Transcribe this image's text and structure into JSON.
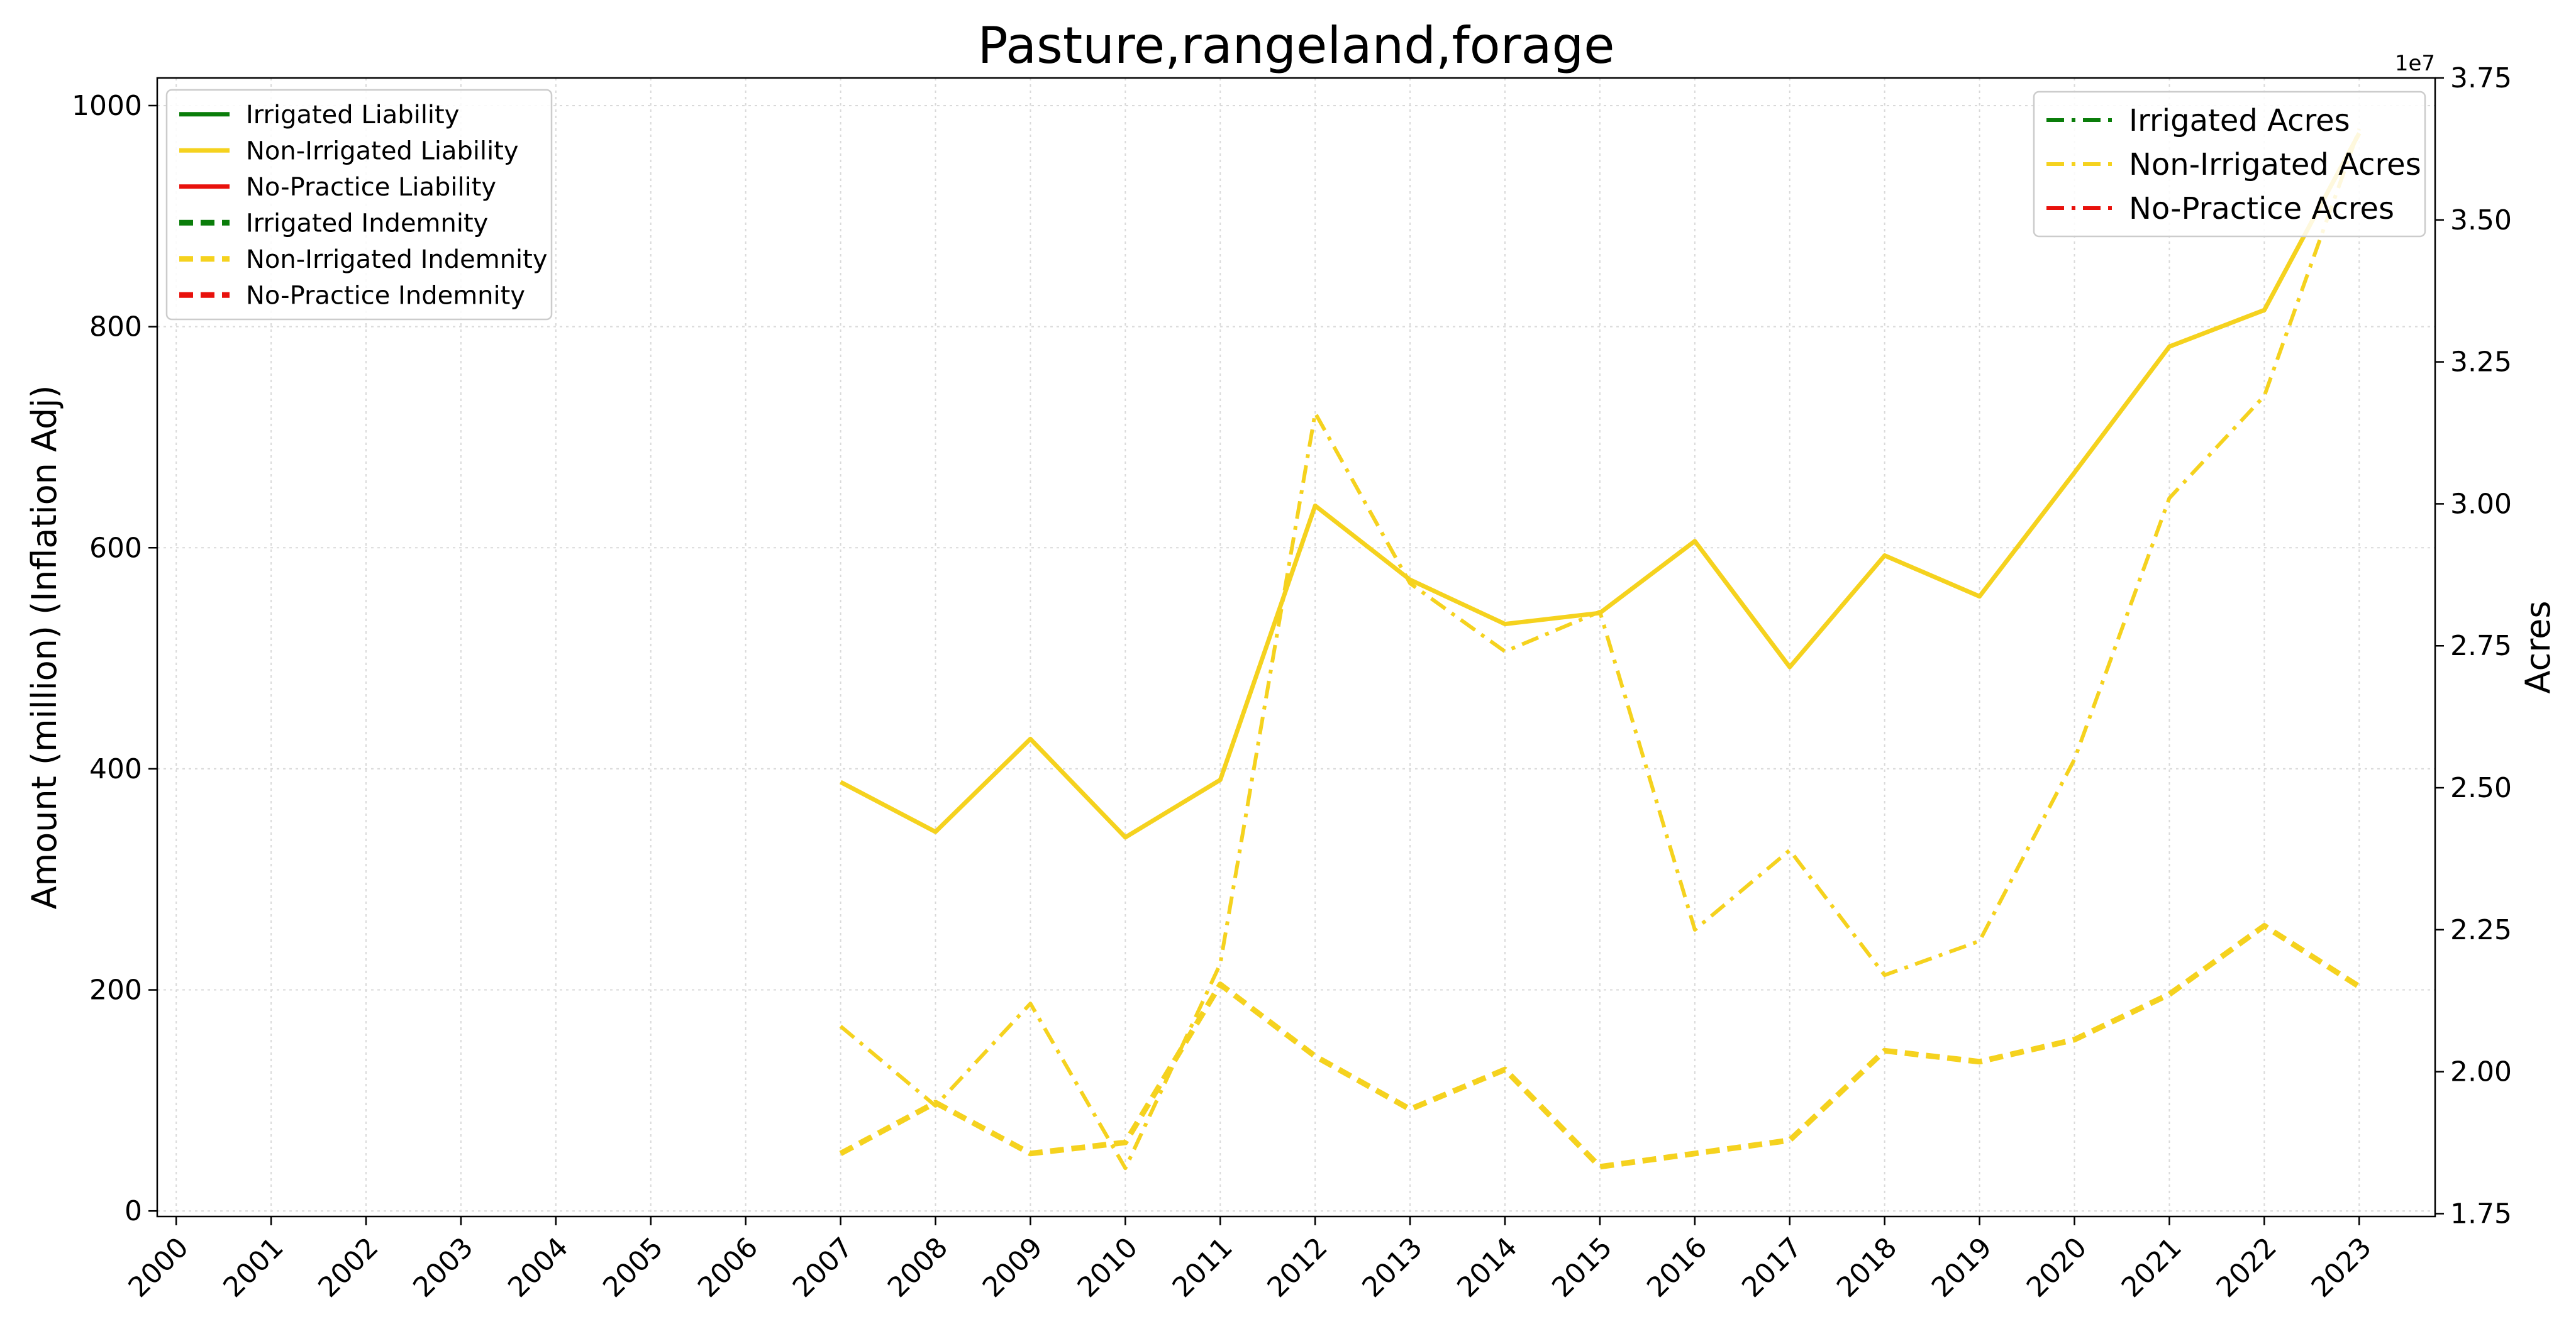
{
  "chart_data": {
    "type": "line",
    "title": "Pasture,rangeland,forage",
    "ylabel_left": "Amount (million) (Inflation Adj)",
    "ylabel_right": "Acres",
    "right_axis_offset_label": "1e7",
    "x": [
      2000,
      2001,
      2002,
      2003,
      2004,
      2005,
      2006,
      2007,
      2008,
      2009,
      2010,
      2011,
      2012,
      2013,
      2014,
      2015,
      2016,
      2017,
      2018,
      2019,
      2020,
      2021,
      2022,
      2023
    ],
    "x_tick_labels": [
      "2000",
      "2001",
      "2002",
      "2003",
      "2004",
      "2005",
      "2006",
      "2007",
      "2008",
      "2009",
      "2010",
      "2011",
      "2012",
      "2013",
      "2014",
      "2015",
      "2016",
      "2017",
      "2018",
      "2019",
      "2020",
      "2021",
      "2022",
      "2023"
    ],
    "xlim": [
      1999.8,
      2023.8
    ],
    "ylim_left": [
      -5,
      1025
    ],
    "ylim_right": [
      1.745,
      3.75
    ],
    "left_ticks": [
      "0",
      "200",
      "400",
      "600",
      "800",
      "1000"
    ],
    "left_tick_values": [
      0,
      200,
      400,
      600,
      800,
      1000
    ],
    "right_ticks": [
      "1.75",
      "2.00",
      "2.25",
      "2.50",
      "2.75",
      "3.00",
      "3.25",
      "3.50",
      "3.75"
    ],
    "right_tick_values": [
      1.75,
      2.0,
      2.25,
      2.5,
      2.75,
      3.0,
      3.25,
      3.5,
      3.75
    ],
    "grid": true,
    "legend_left_placement": "upper-left",
    "legend_right_placement": "upper-right",
    "series": [
      {
        "name": "Irrigated Liability",
        "axis": "left",
        "style": "solid",
        "color": "#0a7d0a",
        "x": [],
        "values": []
      },
      {
        "name": "Non-Irrigated Liability",
        "axis": "left",
        "style": "solid",
        "color": "#f5d21e",
        "x": [
          2007,
          2008,
          2009,
          2010,
          2011,
          2012,
          2013,
          2014,
          2015,
          2016,
          2017,
          2018,
          2019,
          2020,
          2021,
          2022,
          2023
        ],
        "values": [
          388,
          343,
          427,
          338,
          390,
          638,
          571,
          531,
          541,
          606,
          492,
          593,
          556,
          668,
          782,
          815,
          975
        ]
      },
      {
        "name": "No-Practice Liability",
        "axis": "left",
        "style": "solid",
        "color": "#e8110c",
        "x": [],
        "values": []
      },
      {
        "name": "Irrigated Indemnity",
        "axis": "left",
        "style": "dashed",
        "color": "#0a7d0a",
        "x": [],
        "values": []
      },
      {
        "name": "Non-Irrigated Indemnity",
        "axis": "left",
        "style": "dashed",
        "color": "#f5d21e",
        "x": [
          2007,
          2008,
          2009,
          2010,
          2011,
          2012,
          2013,
          2014,
          2015,
          2016,
          2017,
          2018,
          2019,
          2020,
          2021,
          2022,
          2023
        ],
        "values": [
          52,
          98,
          52,
          62,
          205,
          140,
          92,
          128,
          40,
          52,
          64,
          145,
          135,
          155,
          196,
          258,
          203
        ]
      },
      {
        "name": "No-Practice Indemnity",
        "axis": "left",
        "style": "dashed",
        "color": "#e8110c",
        "x": [],
        "values": []
      },
      {
        "name": "Irrigated Acres",
        "axis": "right",
        "style": "dashdot",
        "color": "#0a7d0a",
        "x": [],
        "values": []
      },
      {
        "name": "Non-Irrigated Acres",
        "axis": "right",
        "style": "dashdot",
        "color": "#f5d21e",
        "x": [
          2007,
          2008,
          2009,
          2010,
          2011,
          2012,
          2013,
          2014,
          2015,
          2016,
          2017,
          2018,
          2019,
          2020,
          2021,
          2022,
          2023
        ],
        "values": [
          2.08,
          1.94,
          2.12,
          1.83,
          2.19,
          3.16,
          2.86,
          2.74,
          2.81,
          2.25,
          2.39,
          2.17,
          2.23,
          2.55,
          3.01,
          3.19,
          3.66
        ]
      },
      {
        "name": "No-Practice Acres",
        "axis": "right",
        "style": "dashdot",
        "color": "#e8110c",
        "x": [],
        "values": []
      }
    ],
    "legend_left": [
      "Irrigated Liability",
      "Non-Irrigated Liability",
      "No-Practice Liability",
      "Irrigated Indemnity",
      "Non-Irrigated Indemnity",
      "No-Practice Indemnity"
    ],
    "legend_right": [
      "Irrigated Acres",
      "Non-Irrigated Acres",
      "No-Practice Acres"
    ]
  }
}
